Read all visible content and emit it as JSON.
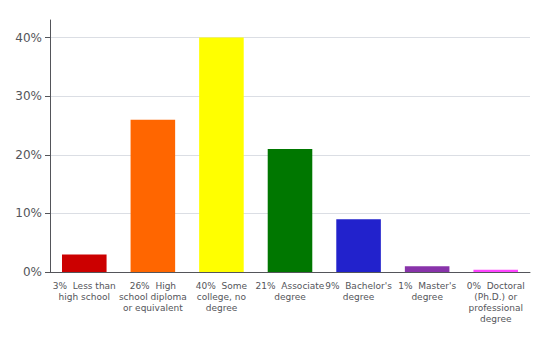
{
  "chart_data": {
    "type": "bar",
    "categories": [
      "3%  Less than\nhigh school",
      "26%  High\nschool diploma\nor equivalent",
      "40%  Some\ncollege, no\ndegree",
      "21%  Associate\ndegree",
      "9%  Bachelor's\ndegree",
      "1%  Master's\ndegree",
      "0%  Doctoral\n(Ph.D.) or\nprofessional\ndegree"
    ],
    "values": [
      3,
      26,
      40,
      21,
      9,
      1,
      0.4
    ],
    "colors": [
      "#cc0000",
      "#ff6600",
      "#ffff00",
      "#007700",
      "#2222cc",
      "#8833aa",
      "#ff44ff"
    ],
    "ylim": [
      0,
      43
    ],
    "yticks": [
      {
        "value": 0,
        "label": "0%"
      },
      {
        "value": 10,
        "label": "10%"
      },
      {
        "value": 20,
        "label": "20%"
      },
      {
        "value": 30,
        "label": "30%"
      },
      {
        "value": 40,
        "label": "40%"
      }
    ],
    "grid": true
  }
}
